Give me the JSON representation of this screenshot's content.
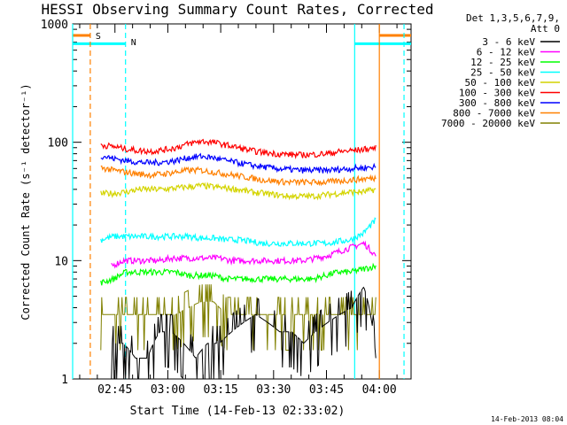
{
  "window": {
    "title": "HESSI Observing Summary Count Rates, Corrected"
  },
  "footer": {
    "date_stamp": "14-Feb-2013 08:04"
  },
  "legend_header": {
    "line1": "Det 1,3,5,6,7,9,",
    "line2": "Att 0"
  },
  "flags": {
    "s_label": "S",
    "n_label": "N"
  },
  "chart_data": {
    "type": "line",
    "title": "HESSI Observing Summary Count Rates, Corrected",
    "xlabel": "Start Time (14-Feb-13 02:33:02)",
    "ylabel": "Corrected Count Rate (s⁻¹ detector⁻¹)",
    "yscale": "log",
    "ylim": [
      1,
      1000
    ],
    "xlim_minutes_after_0233": [
      0,
      96
    ],
    "x_tick_labels": [
      "02:45",
      "03:00",
      "03:15",
      "03:30",
      "03:45",
      "04:00"
    ],
    "x_tick_minutes_after_0233": [
      12,
      27,
      42,
      57,
      72,
      87
    ],
    "y_tick_labels": [
      "1",
      "10",
      "100",
      "1000"
    ],
    "y_tick_values": [
      1,
      10,
      100,
      1000
    ],
    "grid": false,
    "legend_position": "top-right",
    "series": [
      {
        "name": "3 - 6 keV",
        "color": "#000000",
        "start_min": 11,
        "end_min": 86,
        "values": [
          2,
          2,
          1.5,
          1.5,
          2.5,
          2.5,
          2,
          1.5,
          2,
          2,
          2.5,
          3,
          3.5,
          3,
          2.5,
          2.5,
          2,
          2.5,
          3,
          3.5,
          4,
          6,
          1.5
        ]
      },
      {
        "name": "6 - 12 keV",
        "color": "#ff00ff",
        "start_min": 11,
        "end_min": 86,
        "values": [
          9,
          10,
          10,
          10,
          10,
          10.5,
          10.5,
          10.5,
          10.5,
          10.5,
          10,
          10,
          10,
          10,
          10,
          10,
          10,
          10.5,
          11,
          12,
          13,
          14,
          11
        ]
      },
      {
        "name": "12 - 25 keV",
        "color": "#00ff00",
        "start_min": 8,
        "end_min": 86,
        "values": [
          6.5,
          7,
          8,
          8,
          8,
          8,
          8,
          7.5,
          7.5,
          7.5,
          7,
          7,
          7,
          7,
          7,
          7,
          7,
          7,
          7.5,
          8,
          8,
          8.5,
          9
        ]
      },
      {
        "name": "25 - 50 keV",
        "color": "#00ffff",
        "start_min": 8,
        "end_min": 86,
        "values": [
          15,
          16,
          16,
          16,
          16,
          16,
          16,
          16,
          15.5,
          15.5,
          15,
          15,
          14.5,
          14,
          14,
          14,
          14,
          14,
          14,
          14.5,
          15,
          17,
          22
        ]
      },
      {
        "name": "50 - 100 keV",
        "color": "#d4d400",
        "start_min": 8,
        "end_min": 86,
        "values": [
          37,
          37,
          38,
          40,
          40,
          40,
          41,
          42,
          43,
          42,
          41,
          40,
          38,
          37,
          36,
          35,
          35,
          35,
          36,
          37,
          38,
          38,
          40
        ]
      },
      {
        "name": "100 - 300 keV",
        "color": "#ff0000",
        "start_min": 8,
        "end_min": 86,
        "values": [
          95,
          92,
          88,
          85,
          84,
          86,
          90,
          97,
          102,
          100,
          95,
          90,
          85,
          82,
          80,
          79,
          78,
          79,
          80,
          83,
          85,
          87,
          90
        ]
      },
      {
        "name": "300 - 800 keV",
        "color": "#0000ff",
        "start_min": 8,
        "end_min": 86,
        "values": [
          77,
          73,
          70,
          68,
          67,
          68,
          70,
          74,
          76,
          74,
          70,
          67,
          64,
          62,
          60,
          59,
          58,
          58,
          58,
          59,
          60,
          61,
          62
        ]
      },
      {
        "name": "800 - 7000 keV",
        "color": "#ff8000",
        "start_min": 8,
        "end_min": 86,
        "values": [
          61,
          58,
          56,
          54,
          53,
          54,
          56,
          58,
          58,
          56,
          54,
          52,
          50,
          48,
          47,
          46,
          46,
          46,
          46,
          47,
          48,
          49,
          50
        ]
      },
      {
        "name": "7000 - 20000 keV",
        "color": "#808000",
        "start_min": 8,
        "end_min": 86,
        "values": [
          3.5,
          3.5,
          3.5,
          3.5,
          3.5,
          3.5,
          3.5,
          4,
          4.5,
          4.5,
          3.5,
          3.5,
          3.5,
          3.5,
          3.5,
          3.5,
          3.5,
          3.5,
          3.5,
          3.5,
          3.5,
          3.5,
          3.5
        ]
      }
    ],
    "vertical_lines": [
      {
        "label": "S",
        "color": "#ff8000",
        "style": "dashed",
        "minute": 5
      },
      {
        "label": "",
        "color": "#ff8000",
        "style": "solid",
        "minute": 87
      },
      {
        "label": "N",
        "color": "#00ffff",
        "style": "dashed",
        "minute": 15
      },
      {
        "label": "",
        "color": "#00ffff",
        "style": "dashed",
        "minute": 94
      },
      {
        "label": "",
        "color": "#00ffff",
        "style": "solid",
        "minute": 0
      },
      {
        "label": "",
        "color": "#00ffff",
        "style": "solid",
        "minute": 80
      }
    ],
    "flag_bars": [
      {
        "color": "#00ffff",
        "segments": [
          [
            0,
            15
          ],
          [
            80,
            96
          ]
        ],
        "level": 680
      },
      {
        "color": "#ff8000",
        "segments": [
          [
            0,
            5
          ],
          [
            87,
            96
          ]
        ],
        "level": 800
      }
    ]
  }
}
